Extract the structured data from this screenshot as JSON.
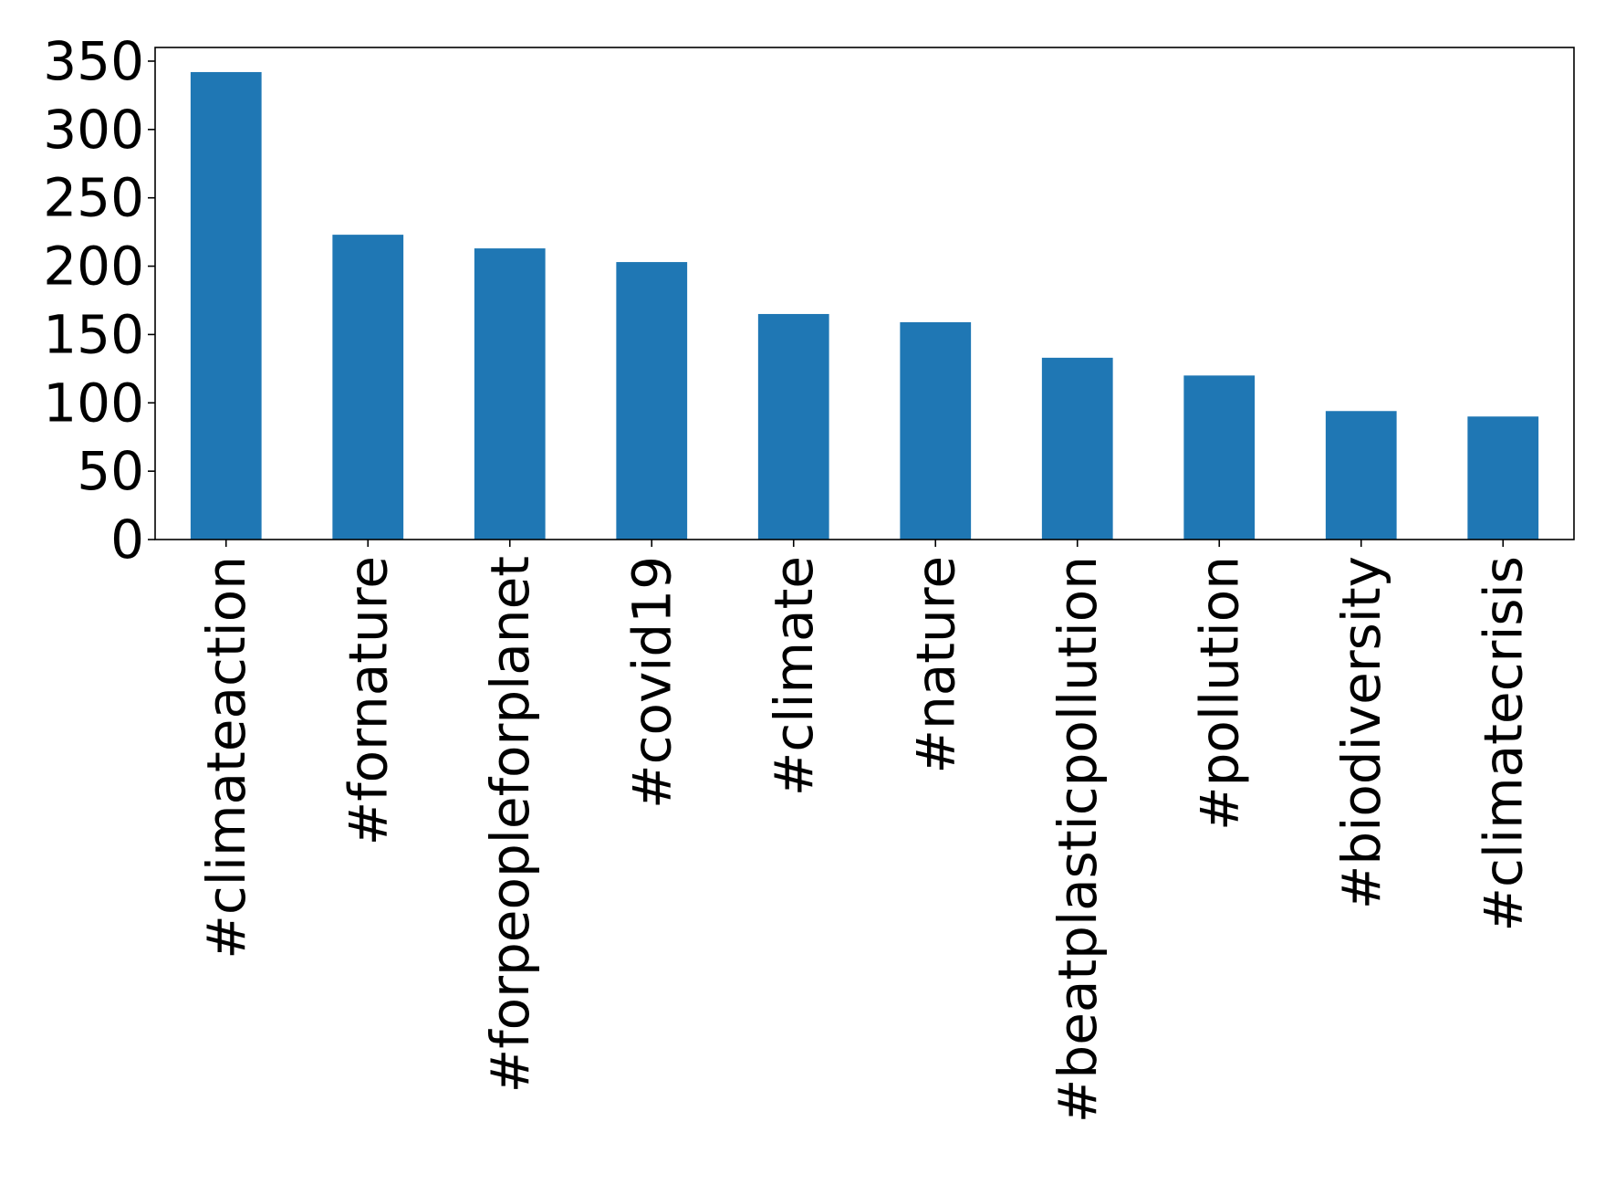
{
  "chart_data": {
    "type": "bar",
    "title": "",
    "xlabel": "",
    "ylabel": "",
    "categories": [
      "#climateaction",
      "#fornature",
      "#forpeopleforplanet",
      "#covid19",
      "#climate",
      "#nature",
      "#beatplasticpollution",
      "#pollution",
      "#biodiversity",
      "#climatecrisis"
    ],
    "values": [
      342,
      223,
      213,
      203,
      165,
      159,
      133,
      120,
      94,
      90
    ],
    "ylim": [
      0,
      360
    ],
    "yticks": [
      0,
      50,
      100,
      150,
      200,
      250,
      300,
      350
    ],
    "bar_color": "#1f77b4",
    "grid": false,
    "legend": "none"
  }
}
